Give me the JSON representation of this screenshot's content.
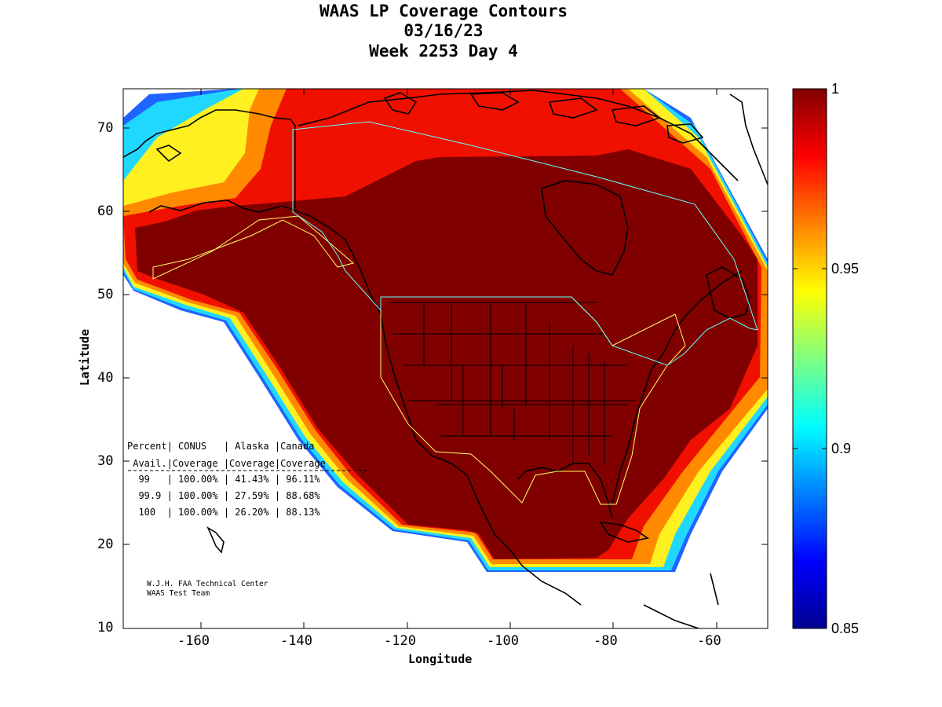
{
  "title": {
    "line1": "WAAS LP Coverage Contours",
    "line2": "03/16/23",
    "line3": "Week 2253 Day 4"
  },
  "axes": {
    "xlabel": "Longitude",
    "ylabel": "Latitude",
    "xlim": [
      -175,
      -50
    ],
    "ylim": [
      10,
      75
    ],
    "x_ticks": [
      "-160",
      "-140",
      "-120",
      "-100",
      "-80",
      "-60"
    ],
    "y_ticks": [
      "70",
      "60",
      "50",
      "40",
      "30",
      "20",
      "10"
    ]
  },
  "colorbar": {
    "labels": [
      "1",
      "0.95",
      "0.9",
      "0.85"
    ],
    "range": [
      0.85,
      1
    ],
    "colormap": "jet"
  },
  "table": {
    "header1": "Percent| CONUS   | Alaska |Canada",
    "header2": " Avail.|Coverage |Coverage|Coverage",
    "rows": [
      "  99   | 100.00% | 41.43% | 96.11%",
      "  99.9 | 100.00% | 27.59% | 88.68%",
      "  100  | 100.00% | 26.20% | 88.13%"
    ]
  },
  "credit": {
    "line1": "W.J.H. FAA Technical Center",
    "line2": "WAAS Test Team"
  },
  "colors": {
    "full_coverage": "#800000",
    "boundary_yellow": "#ffff66",
    "boundary_cyan": "#66ffff"
  },
  "chart_data": {
    "type": "heatmap",
    "title": "WAAS LP Coverage Contours",
    "subtitle": "03/16/23 Week 2253 Day 4",
    "xlabel": "Longitude",
    "ylabel": "Latitude",
    "xlim": [
      -175,
      -50
    ],
    "ylim": [
      10,
      75
    ],
    "value_range": [
      0.85,
      1
    ],
    "coverage": [
      {
        "region": "CONUS",
        "avail_99": "100.00%",
        "avail_99_9": "100.00%",
        "avail_100": "100.00%"
      },
      {
        "region": "Alaska",
        "avail_99": "41.43%",
        "avail_99_9": "27.59%",
        "avail_100": "26.20%"
      },
      {
        "region": "Canada",
        "avail_99": "96.11%",
        "avail_99_9": "88.68%",
        "avail_100": "88.13%"
      }
    ]
  }
}
